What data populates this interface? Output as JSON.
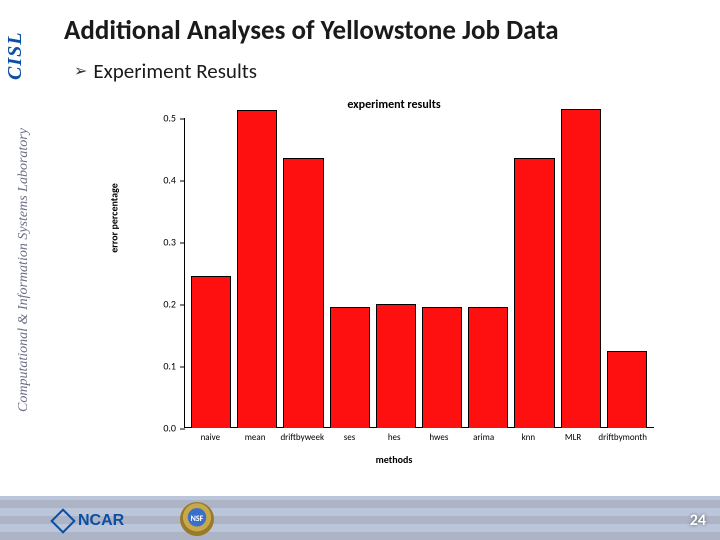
{
  "slide": {
    "title": "Additional Analyses of Yellowstone Job Data",
    "bullet": "Experiment Results",
    "page_number": "24"
  },
  "sidebar": {
    "cisl": "CISL",
    "lab_name": "Computational & Information Systems Laboratory"
  },
  "footer": {
    "ncar": "NCAR",
    "nsf": "NSF"
  },
  "chart": {
    "type": "bar",
    "title": "experiment results",
    "xlabel": "methods",
    "ylabel": "error percentage",
    "ylim": [
      0.0,
      0.5
    ],
    "ytick_step": 0.1,
    "yticks": [
      "0.0",
      "0.1",
      "0.2",
      "0.3",
      "0.4",
      "0.5"
    ],
    "categories": [
      "naive",
      "mean",
      "driftbyweek",
      "ses",
      "hes",
      "hwes",
      "arima",
      "knn",
      "MLR",
      "driftbymonth"
    ],
    "values": [
      0.245,
      0.513,
      0.435,
      0.195,
      0.2,
      0.195,
      0.195,
      0.435,
      0.515,
      0.125
    ],
    "bar_color": "#ff1010",
    "bar_border": "#000000",
    "background_color": "#ffffff",
    "axis_color": "#000000",
    "title_fontsize": 12,
    "label_fontsize": 10,
    "tick_fontsize": 10,
    "bar_width": 0.82
  },
  "colors": {
    "title_text": "#1a1a1a",
    "sidebar_text": "#6b6e87",
    "accent": "#0a4fa3"
  }
}
